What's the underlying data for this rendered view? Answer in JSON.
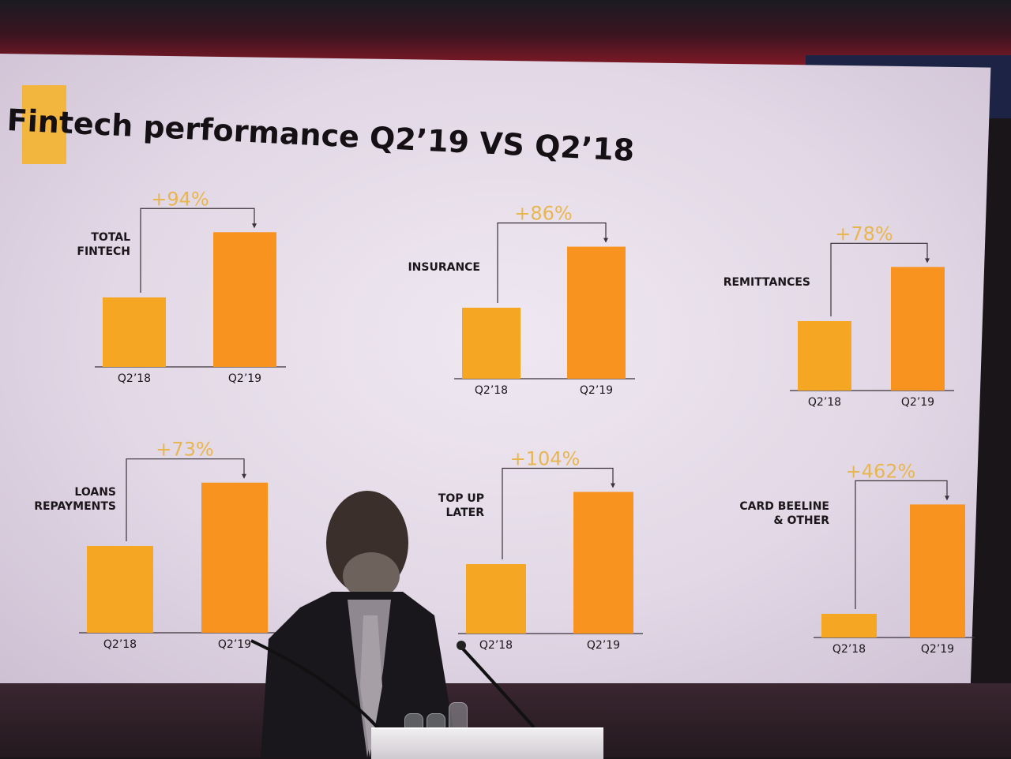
{
  "title": "Fintech performance Q2’19 VS Q2’18",
  "colors": {
    "bar_prev": "#f5a623",
    "bar_curr": "#f7931e",
    "growth_text": "#e8b650",
    "label_text": "#1a161a",
    "axis": "#3a333a"
  },
  "chart_data": [
    {
      "type": "bar",
      "label": "TOTAL FINTECH",
      "growth": "+94%",
      "categories": [
        "Q2’18",
        "Q2’19"
      ],
      "values": [
        1.0,
        1.94
      ]
    },
    {
      "type": "bar",
      "label": "INSURANCE",
      "growth": "+86%",
      "categories": [
        "Q2’18",
        "Q2’19"
      ],
      "values": [
        1.0,
        1.86
      ]
    },
    {
      "type": "bar",
      "label": "REMITTANCES",
      "growth": "+78%",
      "categories": [
        "Q2’18",
        "Q2’19"
      ],
      "values": [
        1.0,
        1.78
      ]
    },
    {
      "type": "bar",
      "label": "LOANS REPAYMENTS",
      "growth": "+73%",
      "categories": [
        "Q2’18",
        "Q2’19"
      ],
      "values": [
        1.0,
        1.73
      ]
    },
    {
      "type": "bar",
      "label": "TOP UP LATER",
      "growth": "+104%",
      "categories": [
        "Q2’18",
        "Q2’19"
      ],
      "values": [
        1.0,
        2.04
      ]
    },
    {
      "type": "bar",
      "label": "CARD BEELINE & OTHER",
      "growth": "+462%",
      "categories": [
        "Q2’18",
        "Q2’19"
      ],
      "values": [
        1.0,
        5.62
      ]
    }
  ]
}
